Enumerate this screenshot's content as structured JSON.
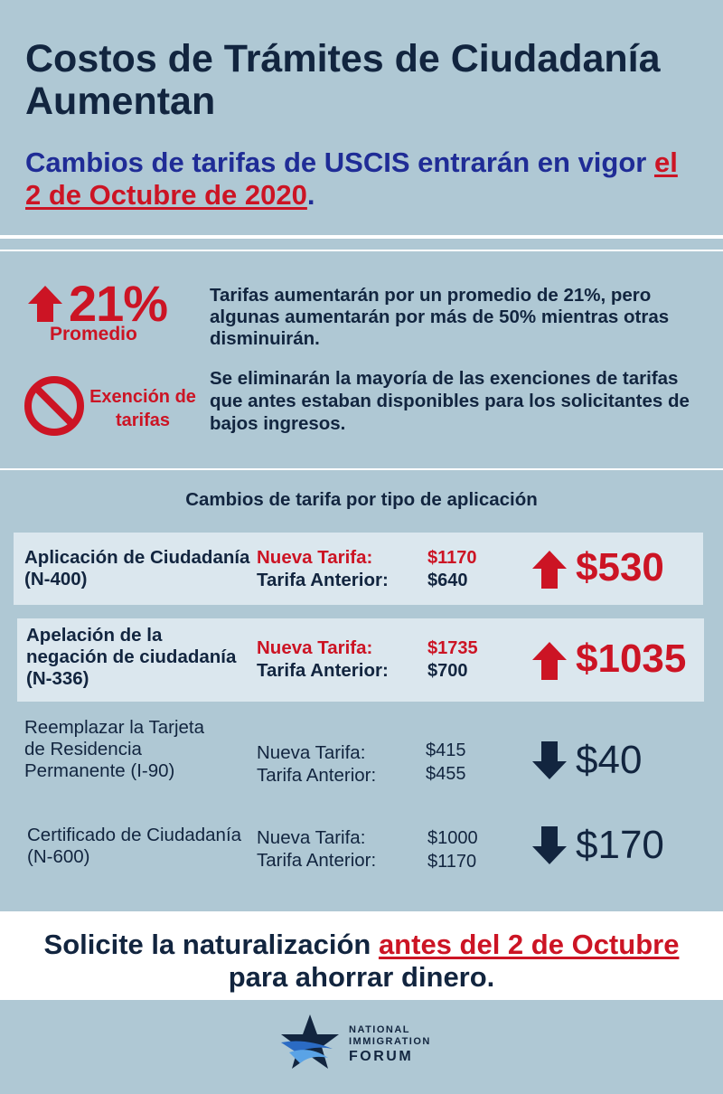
{
  "header": {
    "title": "Costos de Trámites de Ciudadanía Aumentan",
    "subtitle_pre": "Cambios de tarifas de USCIS entrarán en vigor ",
    "subtitle_date": "el 2 de Octubre de 2020",
    "subtitle_post": "."
  },
  "summary": {
    "average": {
      "value": "21%",
      "label": "Promedio",
      "icon": "arrow-up-icon",
      "text": "Tarifas aumentarán por un promedio de 21%, pero algunas aumentarán por más de 50% mientras otras disminuirán."
    },
    "exemption": {
      "label": "Exención de tarifas",
      "icon": "no-entry-icon",
      "text": "Se eliminarán la mayoría de las exenciones de tarifas que antes estaban disponibles para los solicitantes de bajos ingresos."
    }
  },
  "fees": {
    "section_title": "Cambios de tarifa por tipo de aplicación",
    "new_label": "Nueva Tarifa:",
    "old_label": "Tarifa Anterior:",
    "rows": [
      {
        "name": "Aplicación de Ciudadanía (N-400)",
        "new_fee": "$1170",
        "old_fee": "$640",
        "change": "$530",
        "direction": "up"
      },
      {
        "name": "Apelación de la negación de ciudadanía (N-336)",
        "new_fee": "$1735",
        "old_fee": "$700",
        "change": "$1035",
        "direction": "up"
      },
      {
        "name": "Reemplazar la Tarjeta de Residencia Permanente (I-90)",
        "new_fee": "$415",
        "old_fee": "$455",
        "change": "$40",
        "direction": "down"
      },
      {
        "name": "Certificado de Ciudadanía (N-600)",
        "new_fee": "$1000",
        "old_fee": "$1170",
        "change": "$170",
        "direction": "down"
      }
    ]
  },
  "cta": {
    "pre": "Solicite la naturalización ",
    "highlight": "antes del 2 de Octubre",
    "post": " para ahorrar dinero."
  },
  "logo": {
    "line1": "NATIONAL",
    "line2": "IMMIGRATION",
    "line3": "FORUM",
    "icon": "star-icon"
  },
  "colors": {
    "background": "#afc8d4",
    "accent_red": "#cc1424",
    "navy": "#12253f",
    "subtitle_blue": "#1f2c96"
  }
}
